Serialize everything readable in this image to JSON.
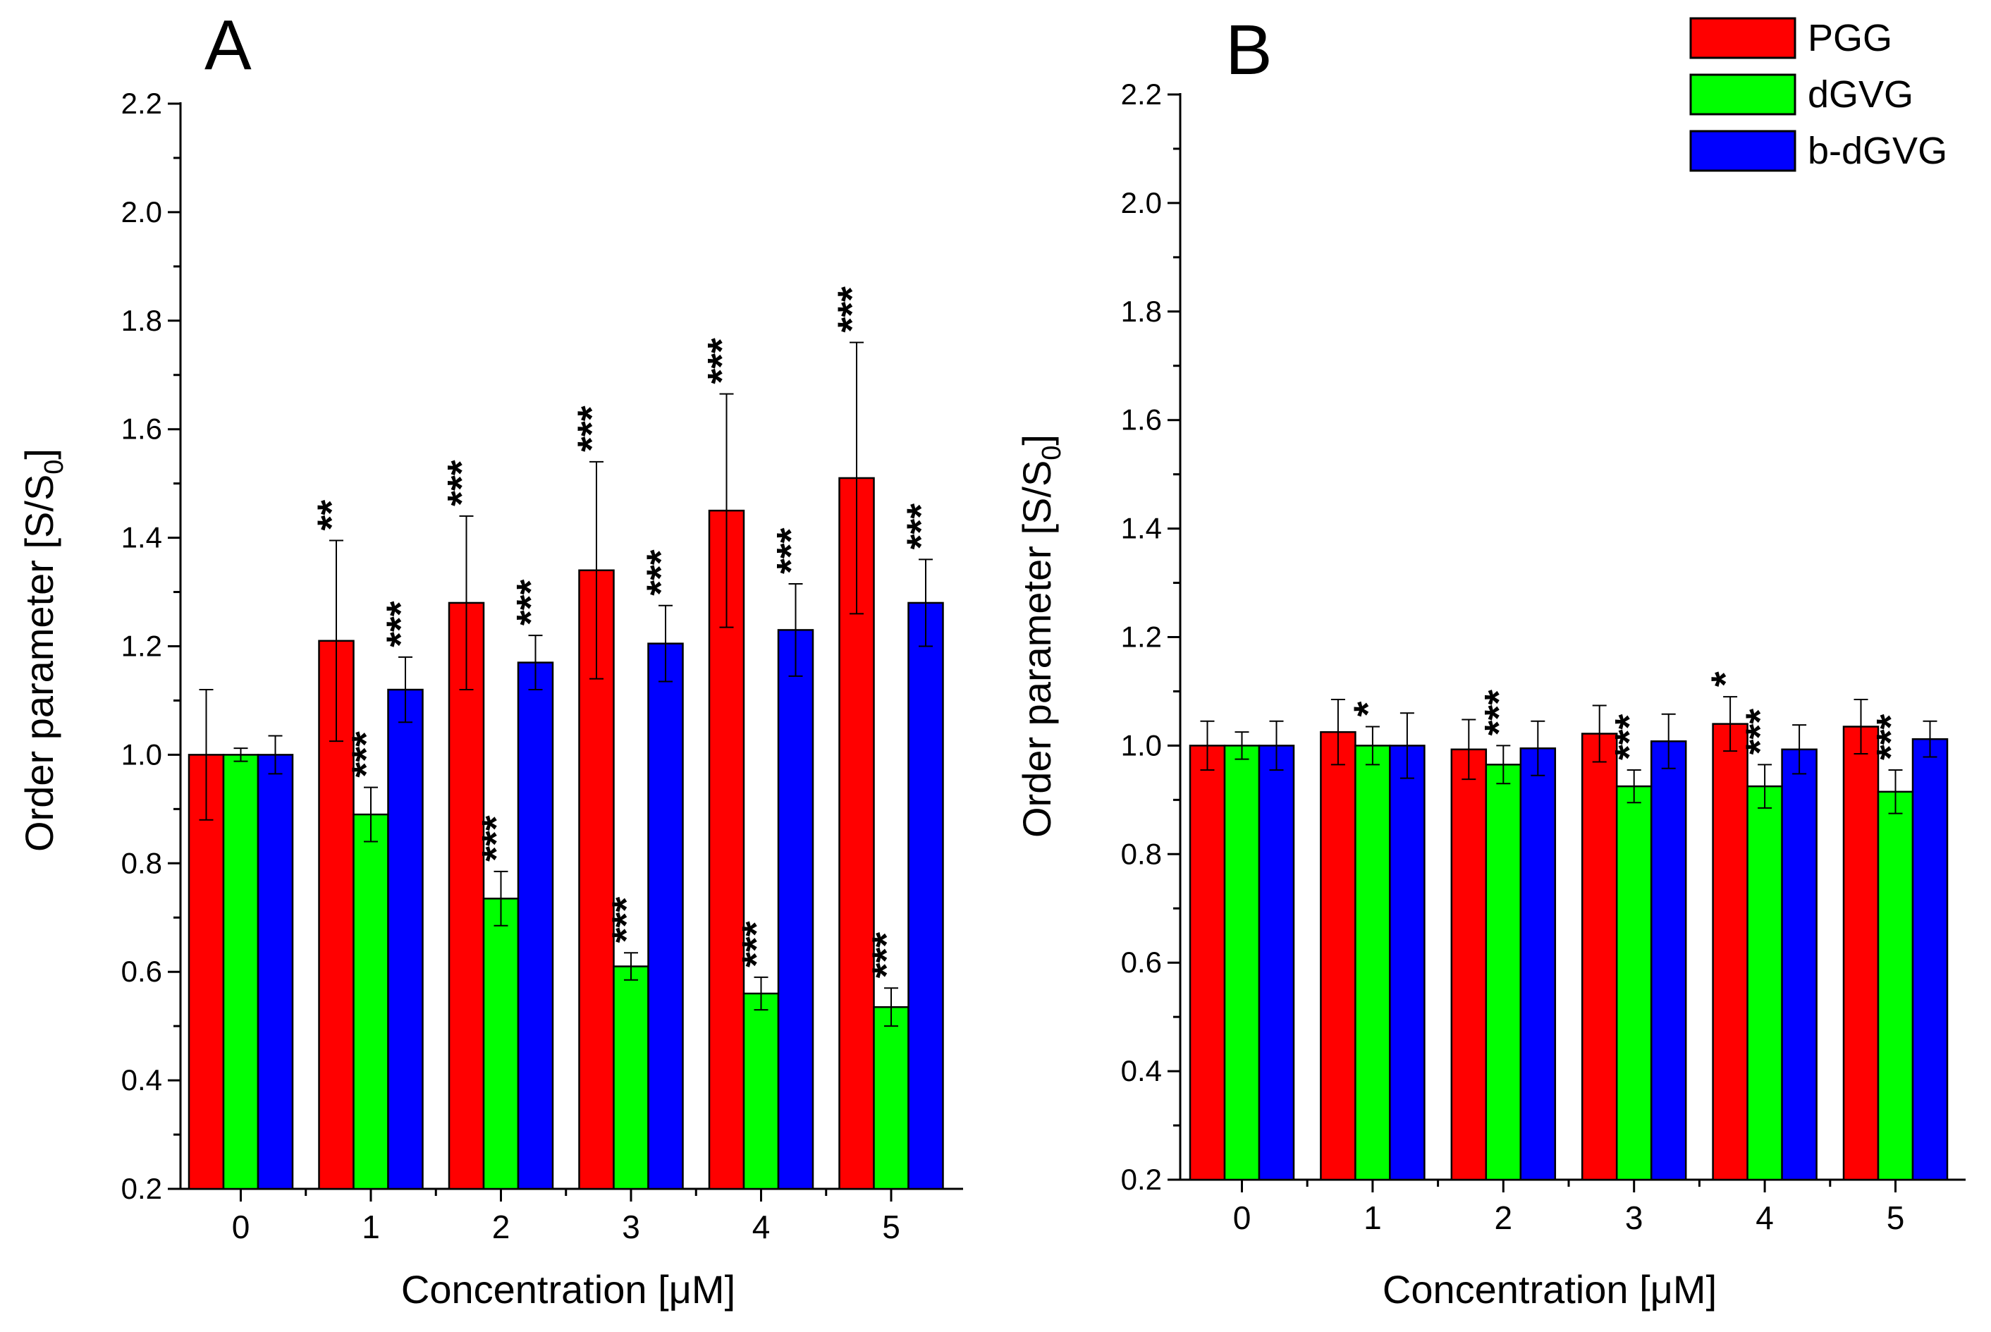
{
  "legend": {
    "position": "top-right",
    "entries": [
      {
        "label": "PGG",
        "color": "#ff0000"
      },
      {
        "label": "dGVG",
        "color": "#00ff00"
      },
      {
        "label": "b-dGVG",
        "color": "#0000ff"
      }
    ]
  },
  "chart_data": [
    {
      "type": "bar",
      "panel_label": "A",
      "title": "",
      "xlabel": "Concentration [μM]",
      "ylabel": "Order parameter [S/S",
      "ylabel_subscript": "0",
      "ylabel_close": "]",
      "ylim": [
        0.2,
        2.2
      ],
      "yticks": [
        "0.2",
        "0.4",
        "0.6",
        "0.8",
        "1.0",
        "1.2",
        "1.4",
        "1.6",
        "1.8",
        "2.0",
        "2.2"
      ],
      "categories": [
        "0",
        "1",
        "2",
        "3",
        "4",
        "5"
      ],
      "series": [
        {
          "name": "PGG",
          "color": "#ff0000",
          "values": [
            1.0,
            1.21,
            1.28,
            1.34,
            1.45,
            1.51
          ],
          "errors": [
            0.12,
            0.185,
            0.16,
            0.2,
            0.215,
            0.25
          ],
          "annotations": [
            "",
            "**",
            "***",
            "***",
            "***",
            "***"
          ]
        },
        {
          "name": "dGVG",
          "color": "#00ff00",
          "values": [
            1.0,
            0.89,
            0.735,
            0.61,
            0.56,
            0.535
          ],
          "errors": [
            0.012,
            0.05,
            0.05,
            0.025,
            0.03,
            0.035
          ],
          "annotations": [
            "",
            "***",
            "***",
            "***",
            "***",
            "***"
          ]
        },
        {
          "name": "b-dGVG",
          "color": "#0000ff",
          "values": [
            1.0,
            1.12,
            1.17,
            1.205,
            1.23,
            1.28
          ],
          "errors": [
            0.035,
            0.06,
            0.05,
            0.07,
            0.085,
            0.08
          ],
          "annotations": [
            "",
            "***",
            "***",
            "***",
            "***",
            "***"
          ]
        }
      ]
    },
    {
      "type": "bar",
      "panel_label": "B",
      "title": "",
      "xlabel": "Concentration [μM]",
      "ylabel": "Order parameter [S/S",
      "ylabel_subscript": "0",
      "ylabel_close": "]",
      "ylim": [
        0.2,
        2.2
      ],
      "yticks": [
        "0.2",
        "0.4",
        "0.6",
        "0.8",
        "1.0",
        "1.2",
        "1.4",
        "1.6",
        "1.8",
        "2.0",
        "2.2"
      ],
      "categories": [
        "0",
        "1",
        "2",
        "3",
        "4",
        "5"
      ],
      "series": [
        {
          "name": "PGG",
          "color": "#ff0000",
          "values": [
            1.0,
            1.025,
            0.993,
            1.022,
            1.04,
            1.035
          ],
          "errors": [
            0.045,
            0.06,
            0.055,
            0.052,
            0.05,
            0.05
          ],
          "annotations": [
            "",
            "",
            "",
            "",
            "*",
            ""
          ]
        },
        {
          "name": "dGVG",
          "color": "#00ff00",
          "values": [
            1.0,
            1.0,
            0.965,
            0.925,
            0.925,
            0.915
          ],
          "errors": [
            0.025,
            0.035,
            0.035,
            0.03,
            0.04,
            0.04
          ],
          "annotations": [
            "",
            "*",
            "***",
            "***",
            "***",
            "***"
          ]
        },
        {
          "name": "b-dGVG",
          "color": "#0000ff",
          "values": [
            1.0,
            1.0,
            0.995,
            1.008,
            0.993,
            1.012
          ],
          "errors": [
            0.045,
            0.06,
            0.05,
            0.05,
            0.045,
            0.033
          ],
          "annotations": [
            "",
            "",
            "",
            "",
            "",
            ""
          ]
        }
      ]
    }
  ]
}
